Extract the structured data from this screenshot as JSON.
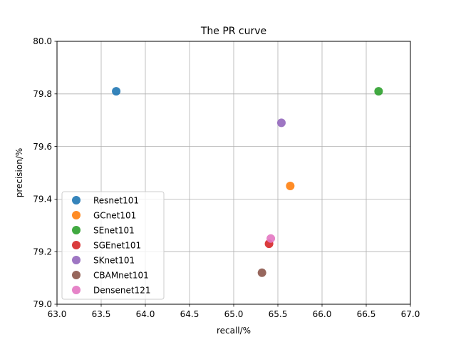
{
  "chart_data": {
    "type": "scatter",
    "title": "The PR curve",
    "xlabel": "recall/%",
    "ylabel": "precision/%",
    "xlim": [
      63.0,
      67.0
    ],
    "ylim": [
      79.0,
      80.0
    ],
    "x_ticks": [
      63.0,
      63.5,
      64.0,
      64.5,
      65.0,
      65.5,
      66.0,
      66.5,
      67.0
    ],
    "y_ticks": [
      79.0,
      79.2,
      79.4,
      79.6,
      79.8,
      80.0
    ],
    "x_tick_labels": [
      "63.0",
      "63.5",
      "64.0",
      "64.5",
      "65.0",
      "65.5",
      "66.0",
      "66.5",
      "67.0"
    ],
    "y_tick_labels": [
      "79.0",
      "79.2",
      "79.4",
      "79.6",
      "79.8",
      "80.0"
    ],
    "grid": true,
    "legend_position": "lower-left",
    "series": [
      {
        "name": "Resnet101",
        "x": 63.67,
        "y": 79.81,
        "color": "#1f77b4"
      },
      {
        "name": "GCnet101",
        "x": 65.64,
        "y": 79.45,
        "color": "#ff7f0e"
      },
      {
        "name": "SEnet101",
        "x": 66.64,
        "y": 79.81,
        "color": "#2ca02c"
      },
      {
        "name": "SGEnet101",
        "x": 65.4,
        "y": 79.23,
        "color": "#d62728"
      },
      {
        "name": "SKnet101",
        "x": 65.54,
        "y": 79.69,
        "color": "#9467bd"
      },
      {
        "name": "CBAMnet101",
        "x": 65.32,
        "y": 79.12,
        "color": "#8c564b"
      },
      {
        "name": "Densenet121",
        "x": 65.42,
        "y": 79.25,
        "color": "#e377c2"
      }
    ]
  }
}
